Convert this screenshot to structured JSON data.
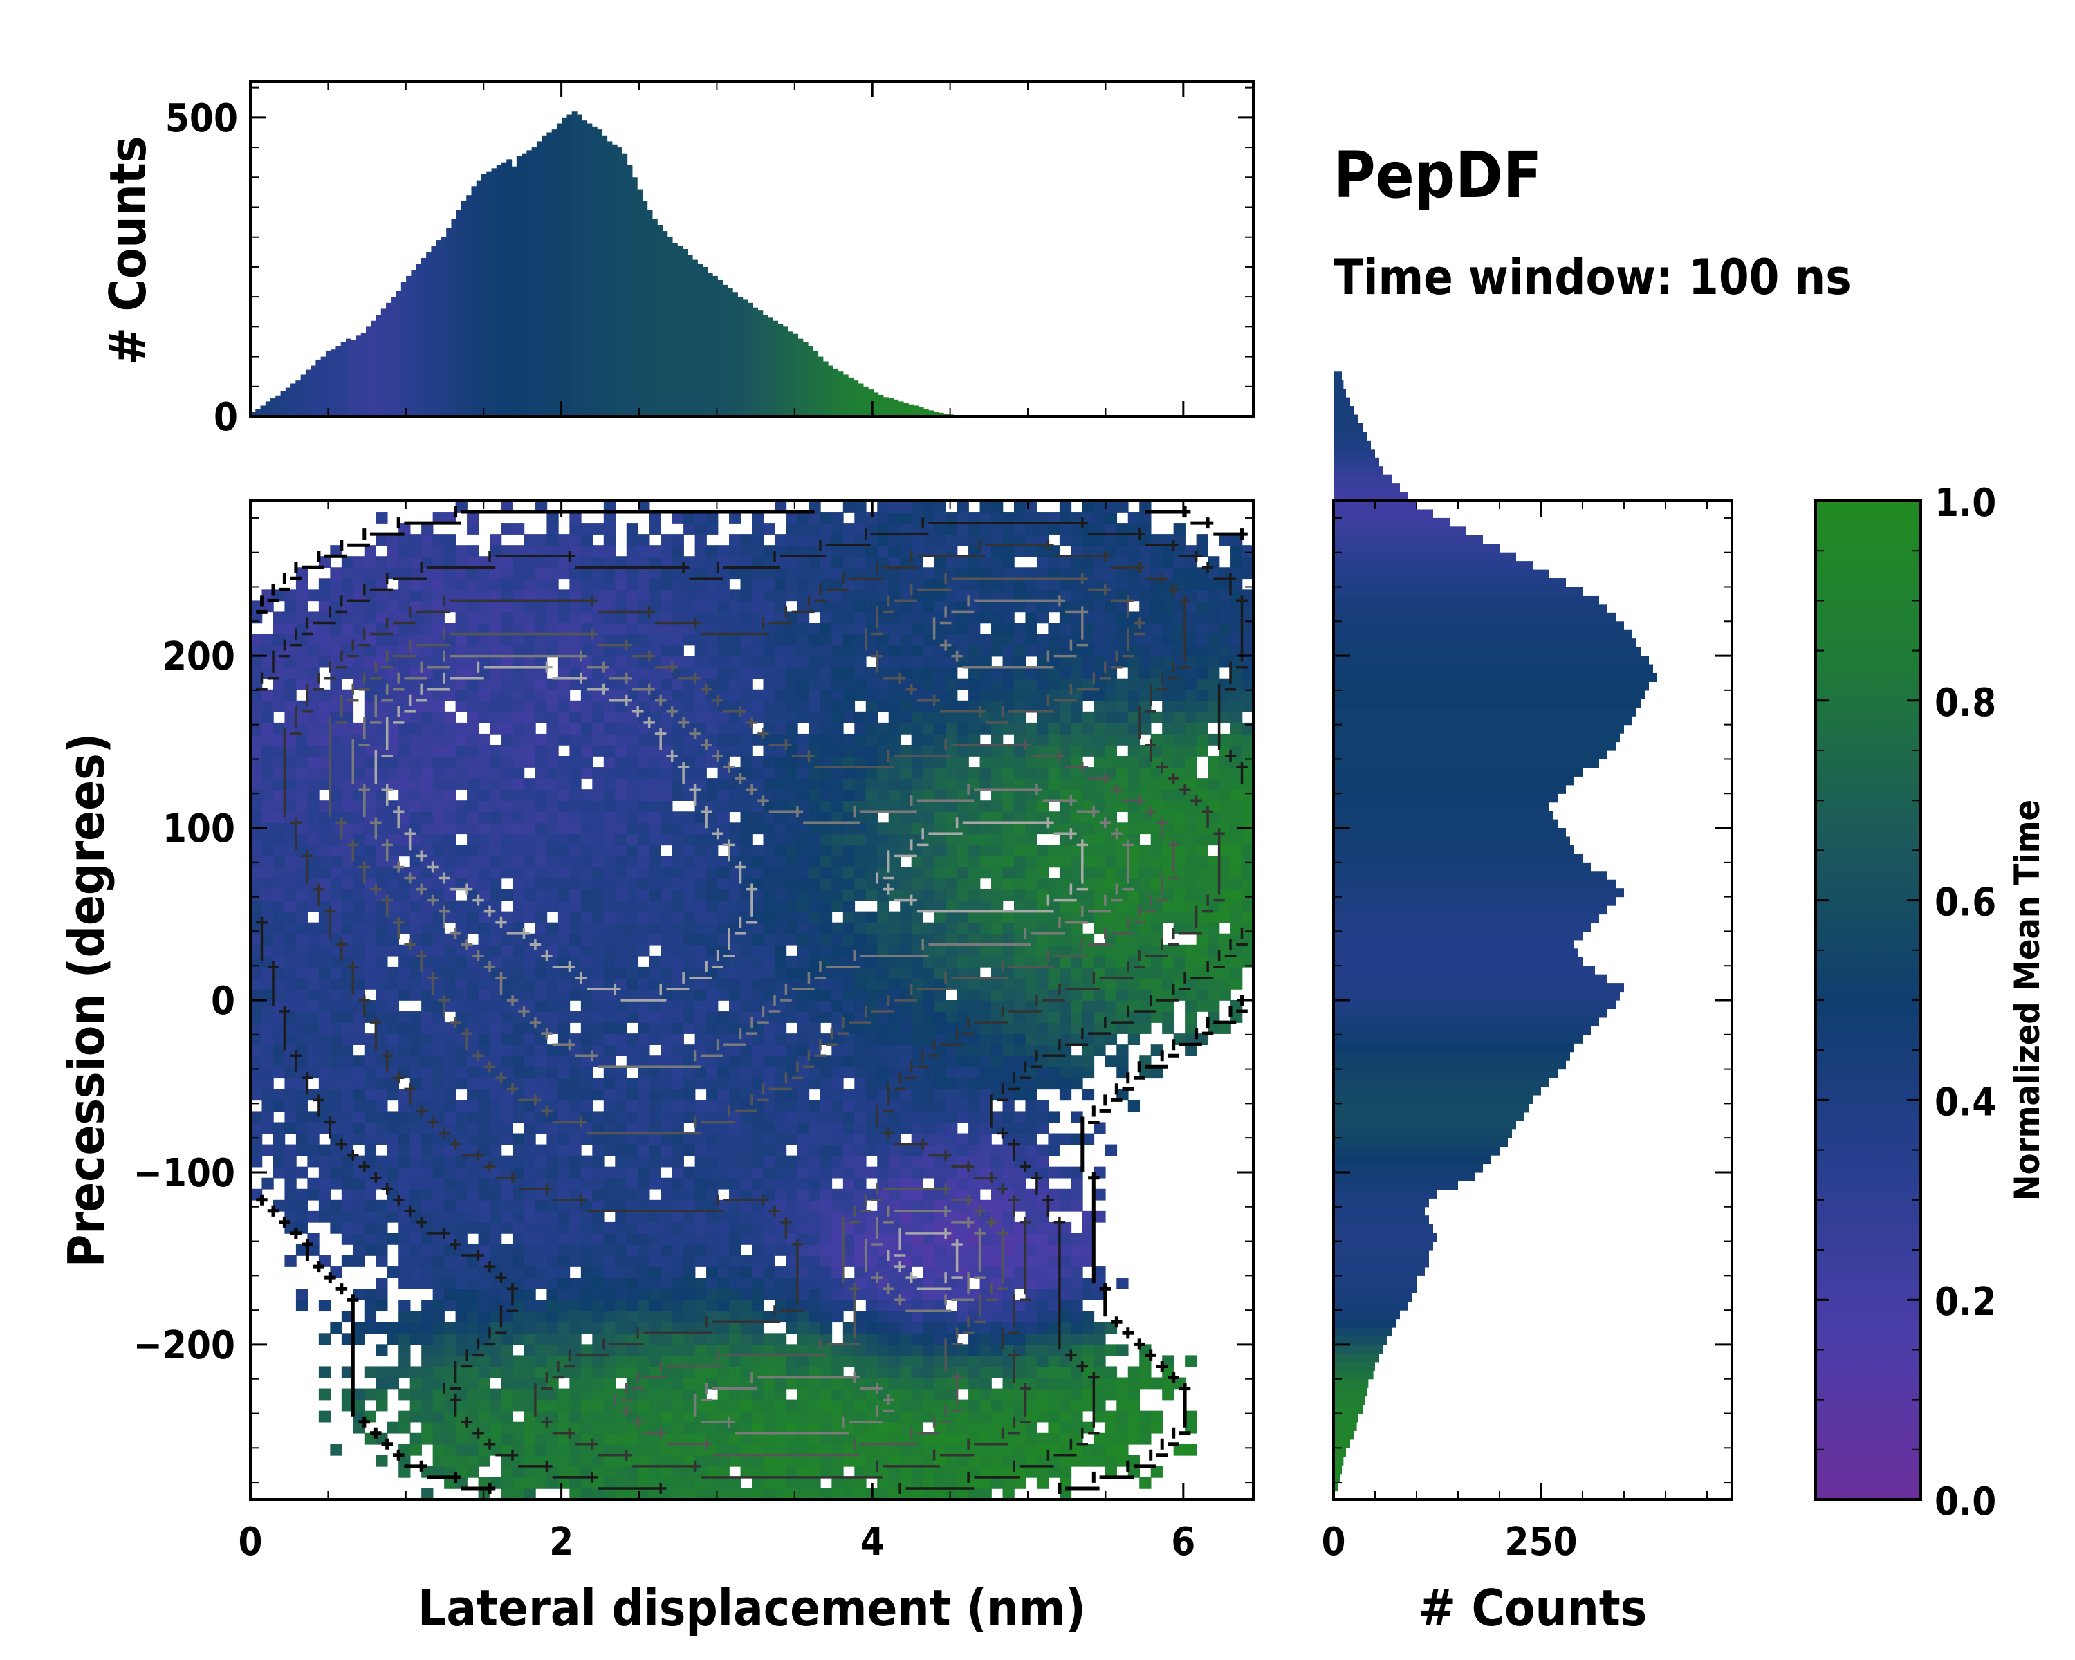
{
  "chart_data": [
    {
      "type": "bar",
      "panel": "top-marginal",
      "ylabel": "# Counts",
      "xlim": [
        0,
        6.45
      ],
      "ylim": [
        0,
        560
      ],
      "yticks": [
        "0",
        "500"
      ],
      "bin_width": 0.0323,
      "series": [
        {
          "name": "counts",
          "x_start": 0,
          "values": [
            8,
            12,
            18,
            25,
            30,
            35,
            42,
            48,
            55,
            60,
            70,
            78,
            85,
            95,
            100,
            110,
            112,
            118,
            125,
            130,
            128,
            135,
            140,
            150,
            160,
            170,
            180,
            190,
            200,
            210,
            225,
            235,
            245,
            255,
            265,
            275,
            285,
            295,
            300,
            315,
            330,
            345,
            360,
            370,
            385,
            395,
            405,
            410,
            415,
            420,
            425,
            430,
            418,
            435,
            440,
            445,
            450,
            460,
            470,
            475,
            480,
            490,
            500,
            505,
            510,
            505,
            495,
            490,
            485,
            480,
            470,
            460,
            455,
            450,
            440,
            420,
            400,
            380,
            360,
            345,
            330,
            320,
            310,
            300,
            290,
            285,
            280,
            270,
            262,
            255,
            250,
            240,
            235,
            228,
            220,
            215,
            208,
            200,
            195,
            190,
            182,
            178,
            170,
            165,
            160,
            155,
            150,
            142,
            138,
            130,
            125,
            118,
            110,
            100,
            92,
            85,
            80,
            75,
            70,
            65,
            60,
            55,
            50,
            45,
            40,
            36,
            32,
            30,
            28,
            25,
            22,
            20,
            18,
            15,
            12,
            10,
            8,
            6,
            4,
            3,
            2,
            1,
            0,
            0,
            0,
            0,
            0,
            0,
            0,
            0
          ]
        },
        {
          "name": "normalized_mean_time",
          "x_start": 0,
          "values": [
            0.42,
            0.42,
            0.42,
            0.42,
            0.4,
            0.4,
            0.4,
            0.38,
            0.38,
            0.37,
            0.36,
            0.35,
            0.35,
            0.34,
            0.34,
            0.33,
            0.33,
            0.32,
            0.32,
            0.3,
            0.29,
            0.28,
            0.28,
            0.27,
            0.27,
            0.27,
            0.28,
            0.28,
            0.29,
            0.3,
            0.31,
            0.32,
            0.33,
            0.34,
            0.35,
            0.36,
            0.37,
            0.38,
            0.39,
            0.4,
            0.41,
            0.42,
            0.43,
            0.44,
            0.45,
            0.46,
            0.47,
            0.48,
            0.48,
            0.49,
            0.49,
            0.5,
            0.5,
            0.5,
            0.5,
            0.51,
            0.51,
            0.51,
            0.52,
            0.52,
            0.52,
            0.53,
            0.53,
            0.53,
            0.54,
            0.54,
            0.55,
            0.55,
            0.55,
            0.56,
            0.56,
            0.57,
            0.57,
            0.58,
            0.58,
            0.58,
            0.58,
            0.59,
            0.59,
            0.59,
            0.59,
            0.6,
            0.6,
            0.6,
            0.6,
            0.6,
            0.6,
            0.6,
            0.6,
            0.6,
            0.6,
            0.6,
            0.61,
            0.61,
            0.62,
            0.62,
            0.63,
            0.63,
            0.64,
            0.65,
            0.66,
            0.67,
            0.68,
            0.69,
            0.7,
            0.71,
            0.72,
            0.73,
            0.74,
            0.75,
            0.76,
            0.77,
            0.78,
            0.79,
            0.8,
            0.81,
            0.82,
            0.83,
            0.84,
            0.85,
            0.86,
            0.87,
            0.88,
            0.89,
            0.9,
            0.9,
            0.91,
            0.91,
            0.92,
            0.92,
            0.93,
            0.93,
            0.94,
            0.94,
            0.94,
            0.95,
            0.95,
            0.95,
            0.96,
            0.96,
            0.96,
            0.97,
            0.97,
            0.97,
            0.97,
            0.98,
            0.98,
            0.98,
            0.98,
            0.98
          ]
        }
      ]
    },
    {
      "type": "heatmap",
      "panel": "main",
      "xlabel": "Lateral displacement (nm)",
      "ylabel": "Precession (degrees)",
      "xlim": [
        0,
        6.45
      ],
      "ylim": [
        -290,
        290
      ],
      "xticks": [
        "0",
        "2",
        "4",
        "6"
      ],
      "yticks": [
        "−200",
        "−100",
        "0",
        "100",
        "200"
      ],
      "ytick_values": [
        -200,
        -100,
        0,
        100,
        200
      ],
      "xtick_values": [
        0,
        2,
        4,
        6
      ],
      "regions": [
        {
          "name": "central-blue",
          "x_center": 2.5,
          "y_center": 20,
          "x_spread": 1.6,
          "y_spread": 130,
          "mean_time": 0.38
        },
        {
          "name": "upper-left-purple",
          "x_center": 1.5,
          "y_center": 150,
          "x_spread": 0.9,
          "y_spread": 60,
          "mean_time": 0.2
        },
        {
          "name": "upper-right-blue",
          "x_center": 5.0,
          "y_center": 220,
          "x_spread": 1.0,
          "y_spread": 40,
          "mean_time": 0.45
        },
        {
          "name": "right-green",
          "x_center": 5.2,
          "y_center": 80,
          "x_spread": 1.0,
          "y_spread": 55,
          "mean_time": 0.95
        },
        {
          "name": "lower-green",
          "x_center": 3.5,
          "y_center": -240,
          "x_spread": 1.4,
          "y_spread": 35,
          "mean_time": 0.95
        },
        {
          "name": "lower-right-purple",
          "x_center": 4.4,
          "y_center": -150,
          "x_spread": 0.5,
          "y_spread": 35,
          "mean_time": 0.1
        }
      ],
      "contour_levels": 6
    },
    {
      "type": "bar",
      "panel": "right-marginal",
      "orientation": "horizontal",
      "xlabel": "# Counts",
      "xlim": [
        0,
        480
      ],
      "xticks": [
        "0",
        "250"
      ],
      "xtick_values": [
        0,
        250
      ],
      "ylim": [
        -290,
        290
      ],
      "bin_height": 5.0,
      "series": [
        {
          "name": "counts",
          "y_start": -285,
          "values": [
            5,
            8,
            10,
            12,
            15,
            20,
            25,
            28,
            30,
            35,
            38,
            40,
            42,
            48,
            50,
            55,
            60,
            65,
            70,
            75,
            80,
            90,
            95,
            100,
            100,
            110,
            115,
            115,
            120,
            125,
            120,
            115,
            110,
            115,
            125,
            150,
            170,
            180,
            190,
            200,
            210,
            215,
            220,
            230,
            235,
            240,
            250,
            260,
            270,
            280,
            285,
            290,
            300,
            310,
            320,
            330,
            340,
            345,
            350,
            330,
            315,
            300,
            295,
            290,
            300,
            310,
            320,
            330,
            340,
            350,
            340,
            330,
            310,
            300,
            290,
            285,
            280,
            270,
            265,
            260,
            270,
            280,
            290,
            300,
            320,
            330,
            340,
            345,
            350,
            360,
            365,
            370,
            375,
            380,
            390,
            385,
            380,
            370,
            365,
            360,
            350,
            340,
            330,
            320,
            300,
            280,
            260,
            240,
            220,
            200,
            180,
            160,
            140,
            120,
            100,
            90,
            80,
            70,
            60,
            55,
            50,
            45,
            40,
            35,
            30,
            25,
            20,
            15,
            12,
            10
          ]
        },
        {
          "name": "normalized_mean_time",
          "y_start": -285,
          "values": [
            0.95,
            0.95,
            0.94,
            0.94,
            0.93,
            0.93,
            0.92,
            0.92,
            0.91,
            0.9,
            0.88,
            0.86,
            0.84,
            0.8,
            0.76,
            0.72,
            0.66,
            0.6,
            0.55,
            0.5,
            0.47,
            0.45,
            0.43,
            0.42,
            0.41,
            0.4,
            0.4,
            0.4,
            0.39,
            0.39,
            0.39,
            0.4,
            0.4,
            0.41,
            0.42,
            0.44,
            0.46,
            0.48,
            0.5,
            0.52,
            0.54,
            0.56,
            0.58,
            0.58,
            0.58,
            0.57,
            0.56,
            0.55,
            0.54,
            0.53,
            0.52,
            0.5,
            0.48,
            0.46,
            0.44,
            0.42,
            0.4,
            0.39,
            0.38,
            0.37,
            0.36,
            0.36,
            0.36,
            0.36,
            0.37,
            0.38,
            0.39,
            0.4,
            0.41,
            0.42,
            0.43,
            0.44,
            0.45,
            0.46,
            0.47,
            0.47,
            0.48,
            0.48,
            0.48,
            0.49,
            0.49,
            0.5,
            0.5,
            0.5,
            0.51,
            0.51,
            0.51,
            0.51,
            0.51,
            0.51,
            0.51,
            0.5,
            0.5,
            0.5,
            0.49,
            0.49,
            0.48,
            0.48,
            0.47,
            0.46,
            0.45,
            0.44,
            0.43,
            0.42,
            0.4,
            0.38,
            0.36,
            0.34,
            0.32,
            0.3,
            0.28,
            0.26,
            0.24,
            0.22,
            0.22,
            0.22,
            0.24,
            0.26,
            0.28,
            0.32,
            0.36,
            0.4,
            0.42,
            0.43,
            0.44,
            0.44,
            0.44,
            0.45,
            0.45,
            0.45
          ]
        }
      ]
    },
    {
      "type": "colorbar",
      "label": "Normalized Mean Time",
      "range": [
        0,
        1
      ],
      "ticks": [
        "0.0",
        "0.2",
        "0.4",
        "0.6",
        "0.8",
        "1.0"
      ],
      "tick_values": [
        0,
        0.2,
        0.4,
        0.6,
        0.8,
        1.0
      ],
      "colormap": [
        "#6a2f9c",
        "#4a3ea8",
        "#283f8f",
        "#0f3e6e",
        "#1c5a5a",
        "#1f7a38",
        "#228b22"
      ]
    }
  ],
  "title": {
    "main": "PepDF",
    "sub": "Time window: 100 ns"
  }
}
